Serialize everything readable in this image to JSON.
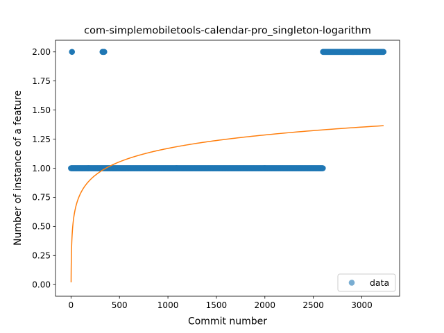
{
  "chart_data": {
    "type": "scatter",
    "title": "com-simplemobiletools-calendar-pro_singleton-logarithm",
    "xlabel": "Commit number",
    "ylabel": "Number of instance of a feature",
    "xlim": [
      -160,
      3390
    ],
    "ylim": [
      -0.1,
      2.1
    ],
    "xticks": [
      0,
      500,
      1000,
      1500,
      2000,
      2500,
      3000
    ],
    "xtick_labels": [
      "0",
      "500",
      "1000",
      "1500",
      "2000",
      "2500",
      "3000"
    ],
    "yticks": [
      0.0,
      0.25,
      0.5,
      0.75,
      1.0,
      1.25,
      1.5,
      1.75,
      2.0
    ],
    "ytick_labels": [
      "0.00",
      "0.25",
      "0.50",
      "0.75",
      "1.00",
      "1.25",
      "1.50",
      "1.75",
      "2.00"
    ],
    "grid": false,
    "legend_position": "lower-right",
    "series": [
      {
        "name": "data",
        "kind": "scatter",
        "color": "#1f77b4",
        "runs": [
          {
            "x_start": 0,
            "x_end": 2600,
            "y": 1
          },
          {
            "x_start": 10,
            "x_end": 12,
            "y": 2
          },
          {
            "x_start": 325,
            "x_end": 345,
            "y": 2
          },
          {
            "x_start": 2600,
            "x_end": 3225,
            "y": 2
          }
        ]
      },
      {
        "kind": "line",
        "color": "#ff7f0e",
        "model": "logarithm",
        "coefficients": {
          "a": 0.0191,
          "b": 0.1667
        },
        "x_range": [
          1,
          3225
        ]
      }
    ]
  }
}
